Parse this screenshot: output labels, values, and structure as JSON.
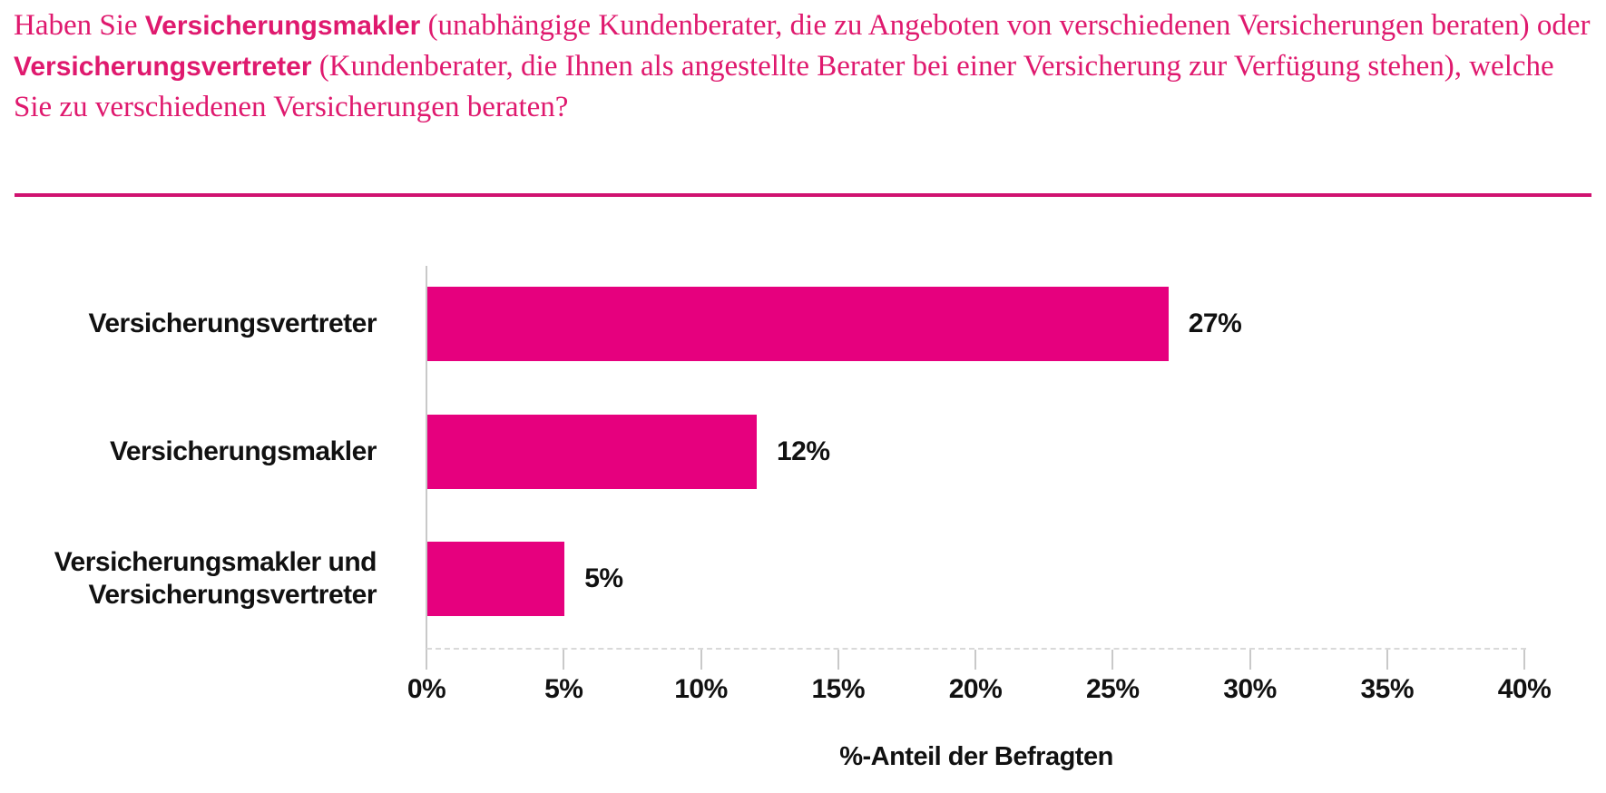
{
  "title": {
    "part1": "Haben Sie ",
    "bold1": "Versicherungsmakler",
    "part2": " (unabhängige Kundenberater, die zu Angeboten von verschiedenen Versicherungen beraten) oder ",
    "bold2": "Versicherungsvertreter",
    "part3": " (Kundenberater, die Ihnen als angestellte Berater bei einer Versicherung zur Verfügung stehen), welche Sie zu verschiedenen Versicherungen beraten?"
  },
  "colors": {
    "title_magenta": "#df196e",
    "divider_magenta": "#d01270",
    "bar_magenta": "#e6007e",
    "axis_gray": "#c9c9c9",
    "text_black": "#111111"
  },
  "chart_data": {
    "type": "bar",
    "orientation": "horizontal",
    "categories": [
      "Versicherungsvertreter",
      "Versicherungsmakler",
      "Versicherungsmakler und\nVersicherungsvertreter"
    ],
    "values": [
      27,
      12,
      5
    ],
    "value_labels": [
      "27%",
      "12%",
      "5%"
    ],
    "xlabel": "%-Anteil der Befragten",
    "ylabel": "",
    "xlim": [
      0,
      40
    ],
    "x_tick_values": [
      0,
      5,
      10,
      15,
      20,
      25,
      30,
      35,
      40
    ],
    "x_ticks": [
      "0%",
      "5%",
      "10%",
      "15%",
      "20%",
      "25%",
      "30%",
      "35%",
      "40%"
    ],
    "grid": false,
    "legend": false
  }
}
